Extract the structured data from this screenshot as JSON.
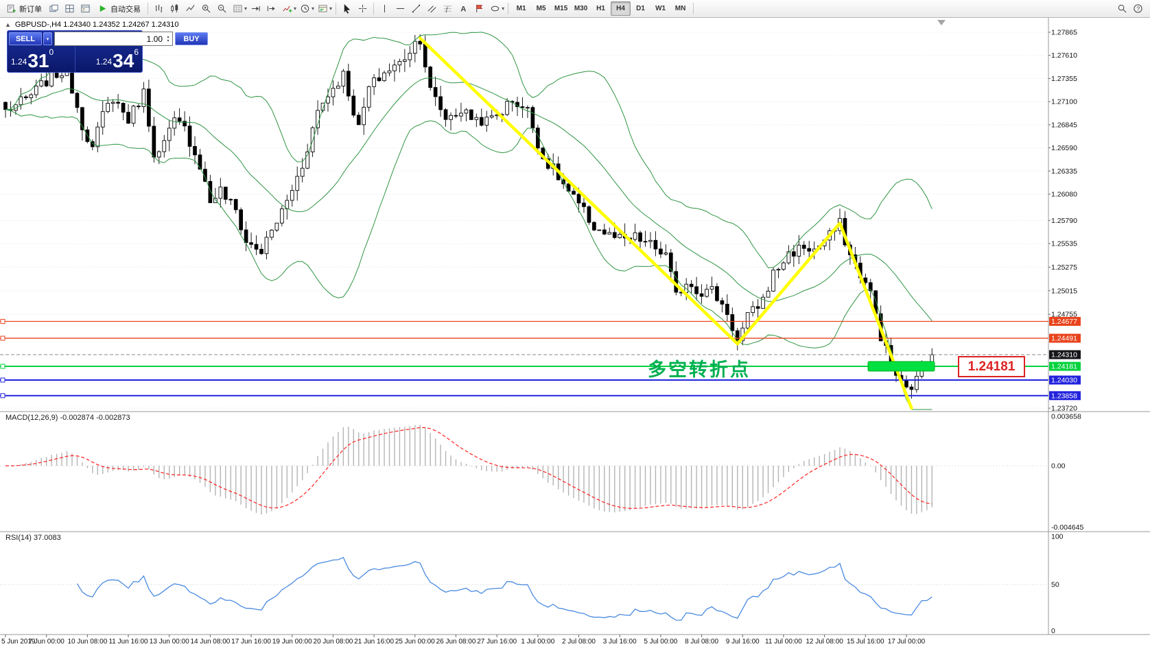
{
  "toolbar": {
    "new_order_label": "新订单",
    "autotrade_label": "自动交易",
    "timeframes": [
      "M1",
      "M5",
      "M15",
      "M30",
      "H1",
      "H4",
      "D1",
      "W1",
      "MN"
    ],
    "active_timeframe": "H4"
  },
  "icons": {
    "dropdown": "▾",
    "collapse_arrow": "▲",
    "spinner_up": "▴",
    "spinner_down": "▾"
  },
  "quote_panel": {
    "sell_label": "SELL",
    "buy_label": "BUY",
    "volume": "1.00",
    "sell_price_prefix": "1.24",
    "sell_price_big": "31",
    "sell_price_sup": "0",
    "buy_price_prefix": "1.24",
    "buy_price_big": "34",
    "buy_price_sup": "6"
  },
  "chart_header": "GBPUSD-,H4  1.24340 1.24352 1.24267 1.24310",
  "annotations": {
    "turning_point_text": "多空转折点",
    "price_callout": "1.24181"
  },
  "indicators": {
    "macd_label": "MACD(12,26,9) -0.002874 -0.002873",
    "rsi_label": "RSI(14) 37.0083"
  },
  "chart_data": {
    "type": "candlestick",
    "symbol": "GBPUSD-",
    "timeframe": "H4",
    "ohlc": {
      "open": 1.2434,
      "high": 1.24352,
      "low": 1.24267,
      "close": 1.2431
    },
    "bid": 1.2431,
    "candle_count": 182,
    "axis_range": {
      "top": 1.27865,
      "bottom": 1.2372
    },
    "price_axis_labels": [
      "1.27865",
      "1.27610",
      "1.27355",
      "1.27100",
      "1.26845",
      "1.26590",
      "1.26335",
      "1.26080",
      "1.25790",
      "1.25535",
      "1.25275",
      "1.25015",
      "1.24755",
      "1.23720"
    ],
    "close_path_anchors": [
      [
        0,
        1.27
      ],
      [
        4,
        1.2712
      ],
      [
        9,
        1.2738
      ],
      [
        12,
        1.2745
      ],
      [
        15,
        1.2685
      ],
      [
        17,
        1.2658
      ],
      [
        19,
        1.2695
      ],
      [
        21,
        1.2715
      ],
      [
        24,
        1.269
      ],
      [
        27,
        1.272
      ],
      [
        29,
        1.2655
      ],
      [
        30,
        1.2652
      ],
      [
        33,
        1.2688
      ],
      [
        35,
        1.268
      ],
      [
        38,
        1.264
      ],
      [
        40,
        1.26
      ],
      [
        42,
        1.2612
      ],
      [
        45,
        1.259
      ],
      [
        47,
        1.2555
      ],
      [
        50,
        1.2545
      ],
      [
        53,
        1.2578
      ],
      [
        55,
        1.26
      ],
      [
        58,
        1.264
      ],
      [
        61,
        1.27
      ],
      [
        63,
        1.2718
      ],
      [
        66,
        1.274
      ],
      [
        69,
        1.268
      ],
      [
        71,
        1.2725
      ],
      [
        74,
        1.2742
      ],
      [
        77,
        1.2752
      ],
      [
        80,
        1.2775
      ],
      [
        81,
        1.278
      ],
      [
        83,
        1.2722
      ],
      [
        86,
        1.2692
      ],
      [
        89,
        1.27
      ],
      [
        91,
        1.2693
      ],
      [
        94,
        1.2688
      ],
      [
        97,
        1.27
      ],
      [
        99,
        1.2712
      ],
      [
        102,
        1.27
      ],
      [
        105,
        1.2648
      ],
      [
        107,
        1.2635
      ],
      [
        110,
        1.261
      ],
      [
        113,
        1.2588
      ],
      [
        115,
        1.2572
      ],
      [
        118,
        1.2562
      ],
      [
        121,
        1.2556
      ],
      [
        123,
        1.256
      ],
      [
        126,
        1.2552
      ],
      [
        129,
        1.254
      ],
      [
        131,
        1.2495
      ],
      [
        133,
        1.2512
      ],
      [
        136,
        1.25
      ],
      [
        138,
        1.2502
      ],
      [
        141,
        1.2478
      ],
      [
        143,
        1.2445
      ],
      [
        145,
        1.2472
      ],
      [
        148,
        1.2492
      ],
      [
        150,
        1.252
      ],
      [
        153,
        1.2542
      ],
      [
        156,
        1.255
      ],
      [
        158,
        1.2546
      ],
      [
        161,
        1.2562
      ],
      [
        163,
        1.2575
      ],
      [
        165,
        1.254
      ],
      [
        167,
        1.252
      ],
      [
        169,
        1.2498
      ],
      [
        171,
        1.2452
      ],
      [
        173,
        1.242
      ],
      [
        175,
        1.2398
      ],
      [
        176,
        1.2392
      ],
      [
        178,
        1.2402
      ],
      [
        179,
        1.2425
      ],
      [
        180,
        1.2428
      ],
      [
        181,
        1.2431
      ]
    ],
    "trend_lines": {
      "color": "#ffff00",
      "segments": [
        [
          [
            81,
            1.278
          ],
          [
            143,
            1.2443
          ]
        ],
        [
          [
            143,
            1.2443
          ],
          [
            163,
            1.2576
          ]
        ],
        [
          [
            163,
            1.2576
          ],
          [
            177,
            1.2372
          ]
        ]
      ]
    },
    "horizontal_lines": [
      {
        "label": "1.24677",
        "price": 1.24677,
        "color": "#e8431c",
        "width": 1.3
      },
      {
        "label": "1.24491",
        "price": 1.24491,
        "color": "#e8431c",
        "width": 1.3
      },
      {
        "label": "1.24181",
        "price": 1.24181,
        "color": "#00d23c",
        "width": 2
      },
      {
        "label": "1.24030",
        "price": 1.2403,
        "color": "#2222dd",
        "width": 2
      },
      {
        "label": "1.23858",
        "price": 1.23858,
        "color": "#2222dd",
        "width": 2
      }
    ],
    "current_price_badge": {
      "label": "1.24310",
      "price": 1.2431,
      "color": "#16161a"
    },
    "highlight_bar": {
      "from_index": 168.5,
      "to_index": 181.5,
      "price": 1.24181,
      "color": "#00e040"
    },
    "bollinger": {
      "period": 20,
      "deviation": 2,
      "color": "#2e9442"
    },
    "macd": {
      "params": "12,26,9",
      "value": -0.002874,
      "signal_value": -0.002873,
      "axis_labels": [
        "0.003658",
        "0.00",
        "-0.004645"
      ],
      "histogram_color": "#b4b4b4",
      "signal_color": "#ff2020"
    },
    "rsi": {
      "period": 14,
      "value": 37.0083,
      "axis_labels": [
        "100",
        "50",
        "0"
      ],
      "color": "#4a8ae0"
    },
    "x_axis_labels": [
      "5 Jun 2019",
      "7 Jun 00:00",
      "10 Jun 08:00",
      "11 Jun 16:00",
      "13 Jun 00:00",
      "14 Jun 08:00",
      "17 Jun 16:00",
      "19 Jun 00:00",
      "20 Jun 08:00",
      "21 Jun 16:00",
      "25 Jun 00:00",
      "26 Jun 08:00",
      "27 Jun 16:00",
      "1 Jul 00:00",
      "2 Jul 08:00",
      "3 Jul 16:00",
      "5 Jul 00:00",
      "8 Jul 08:00",
      "9 Jul 16:00",
      "11 Jul 00:00",
      "12 Jul 08:00",
      "15 Jul 16:00",
      "17 Jul 00:00"
    ],
    "candles_per_label": 8
  }
}
